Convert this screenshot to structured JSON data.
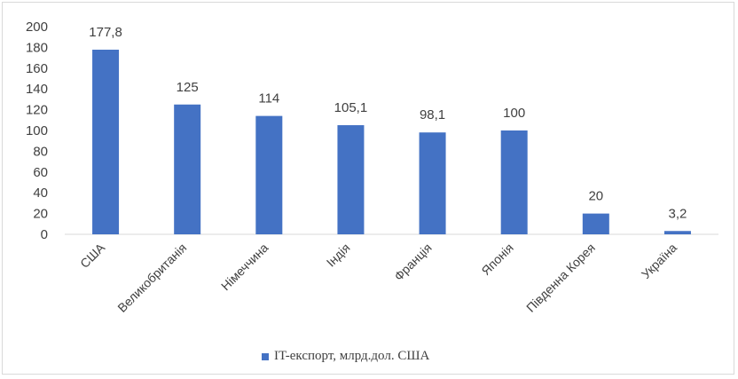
{
  "chart_data": {
    "type": "bar",
    "categories": [
      "США",
      "Великобританія",
      "Німеччина",
      "Індія",
      "Франція",
      "Японія",
      "Південна Корея",
      "Україна"
    ],
    "series": [
      {
        "name": "IT-експорт, млрд.дол. США",
        "values": [
          177.8,
          125,
          114,
          105.1,
          98.1,
          100,
          20,
          3.2
        ],
        "labels": [
          "177,8",
          "125",
          "114",
          "105,1",
          "98,1",
          "100",
          "20",
          "3,2"
        ],
        "color": "#4472c4"
      }
    ],
    "ylim": [
      0,
      200
    ],
    "yticks": [
      0,
      20,
      40,
      60,
      80,
      100,
      120,
      140,
      160,
      180,
      200
    ],
    "grid": false,
    "legend_position": "bottom"
  }
}
